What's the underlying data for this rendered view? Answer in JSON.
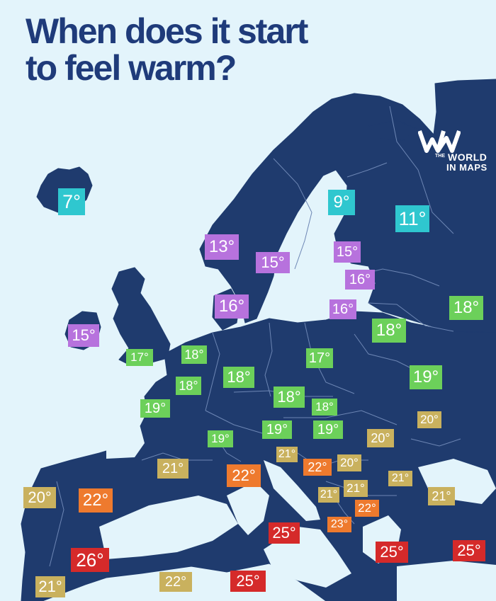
{
  "title": {
    "line1": "When does it start",
    "line2": "to feel warm?"
  },
  "brand": {
    "the": "THE",
    "line1": "WORLD",
    "line2": "IN MAPS",
    "icon": "world-in-maps-logo"
  },
  "colors": {
    "sea": "#e3f4fb",
    "land": "#1f3b6e",
    "border": "#6d86b4",
    "title": "#1f3b7a",
    "cyan": "#2fc7cf",
    "purple": "#b772dd",
    "green": "#6cd05a",
    "tan": "#c9b15e",
    "orange": "#ee7a2e",
    "red": "#d52a2a"
  },
  "temperatures": [
    {
      "id": "iceland",
      "label": "7°",
      "color": "cyan"
    },
    {
      "id": "north-finland",
      "label": "9°",
      "color": "cyan"
    },
    {
      "id": "northwest-russia",
      "label": "11°",
      "color": "cyan"
    },
    {
      "id": "norway",
      "label": "13°",
      "color": "purple"
    },
    {
      "id": "sweden",
      "label": "15°",
      "color": "purple"
    },
    {
      "id": "south-finland",
      "label": "15°",
      "color": "purple"
    },
    {
      "id": "estonia",
      "label": "16°",
      "color": "purple"
    },
    {
      "id": "denmark",
      "label": "16°",
      "color": "purple"
    },
    {
      "id": "latvia",
      "label": "16°",
      "color": "purple"
    },
    {
      "id": "ireland",
      "label": "15°",
      "color": "purple"
    },
    {
      "id": "russia-west",
      "label": "18°",
      "color": "green"
    },
    {
      "id": "belarus",
      "label": "18°",
      "color": "green"
    },
    {
      "id": "united-kingdom",
      "label": "17°",
      "color": "green"
    },
    {
      "id": "netherlands",
      "label": "18°",
      "color": "green"
    },
    {
      "id": "belgium",
      "label": "18°",
      "color": "green"
    },
    {
      "id": "germany",
      "label": "18°",
      "color": "green"
    },
    {
      "id": "poland",
      "label": "17°",
      "color": "green"
    },
    {
      "id": "ukraine",
      "label": "19°",
      "color": "green"
    },
    {
      "id": "north-france",
      "label": "19°",
      "color": "green"
    },
    {
      "id": "czechia",
      "label": "18°",
      "color": "green"
    },
    {
      "id": "slovakia",
      "label": "18°",
      "color": "green"
    },
    {
      "id": "switzerland",
      "label": "19°",
      "color": "green"
    },
    {
      "id": "austria",
      "label": "19°",
      "color": "green"
    },
    {
      "id": "hungary",
      "label": "19°",
      "color": "green"
    },
    {
      "id": "moldova",
      "label": "20°",
      "color": "tan"
    },
    {
      "id": "romania",
      "label": "20°",
      "color": "tan"
    },
    {
      "id": "south-france",
      "label": "21°",
      "color": "tan"
    },
    {
      "id": "slovenia",
      "label": "21°",
      "color": "tan"
    },
    {
      "id": "bosnia",
      "label": "22°",
      "color": "orange"
    },
    {
      "id": "serbia",
      "label": "20°",
      "color": "tan"
    },
    {
      "id": "north-italy",
      "label": "22°",
      "color": "orange"
    },
    {
      "id": "bulgaria",
      "label": "21°",
      "color": "tan"
    },
    {
      "id": "montenegro",
      "label": "21°",
      "color": "tan"
    },
    {
      "id": "kosovo",
      "label": "21°",
      "color": "tan"
    },
    {
      "id": "black-sea-coast",
      "label": "21°",
      "color": "tan"
    },
    {
      "id": "north-macedonia",
      "label": "22°",
      "color": "orange"
    },
    {
      "id": "albania",
      "label": "23°",
      "color": "orange"
    },
    {
      "id": "portugal",
      "label": "20°",
      "color": "tan"
    },
    {
      "id": "central-spain",
      "label": "22°",
      "color": "orange"
    },
    {
      "id": "south-italy",
      "label": "25°",
      "color": "red"
    },
    {
      "id": "greece",
      "label": "25°",
      "color": "red"
    },
    {
      "id": "turkey",
      "label": "25°",
      "color": "red"
    },
    {
      "id": "south-spain",
      "label": "26°",
      "color": "red"
    },
    {
      "id": "morocco",
      "label": "21°",
      "color": "tan"
    },
    {
      "id": "algeria",
      "label": "22°",
      "color": "tan"
    },
    {
      "id": "tunisia",
      "label": "25°",
      "color": "red"
    }
  ]
}
